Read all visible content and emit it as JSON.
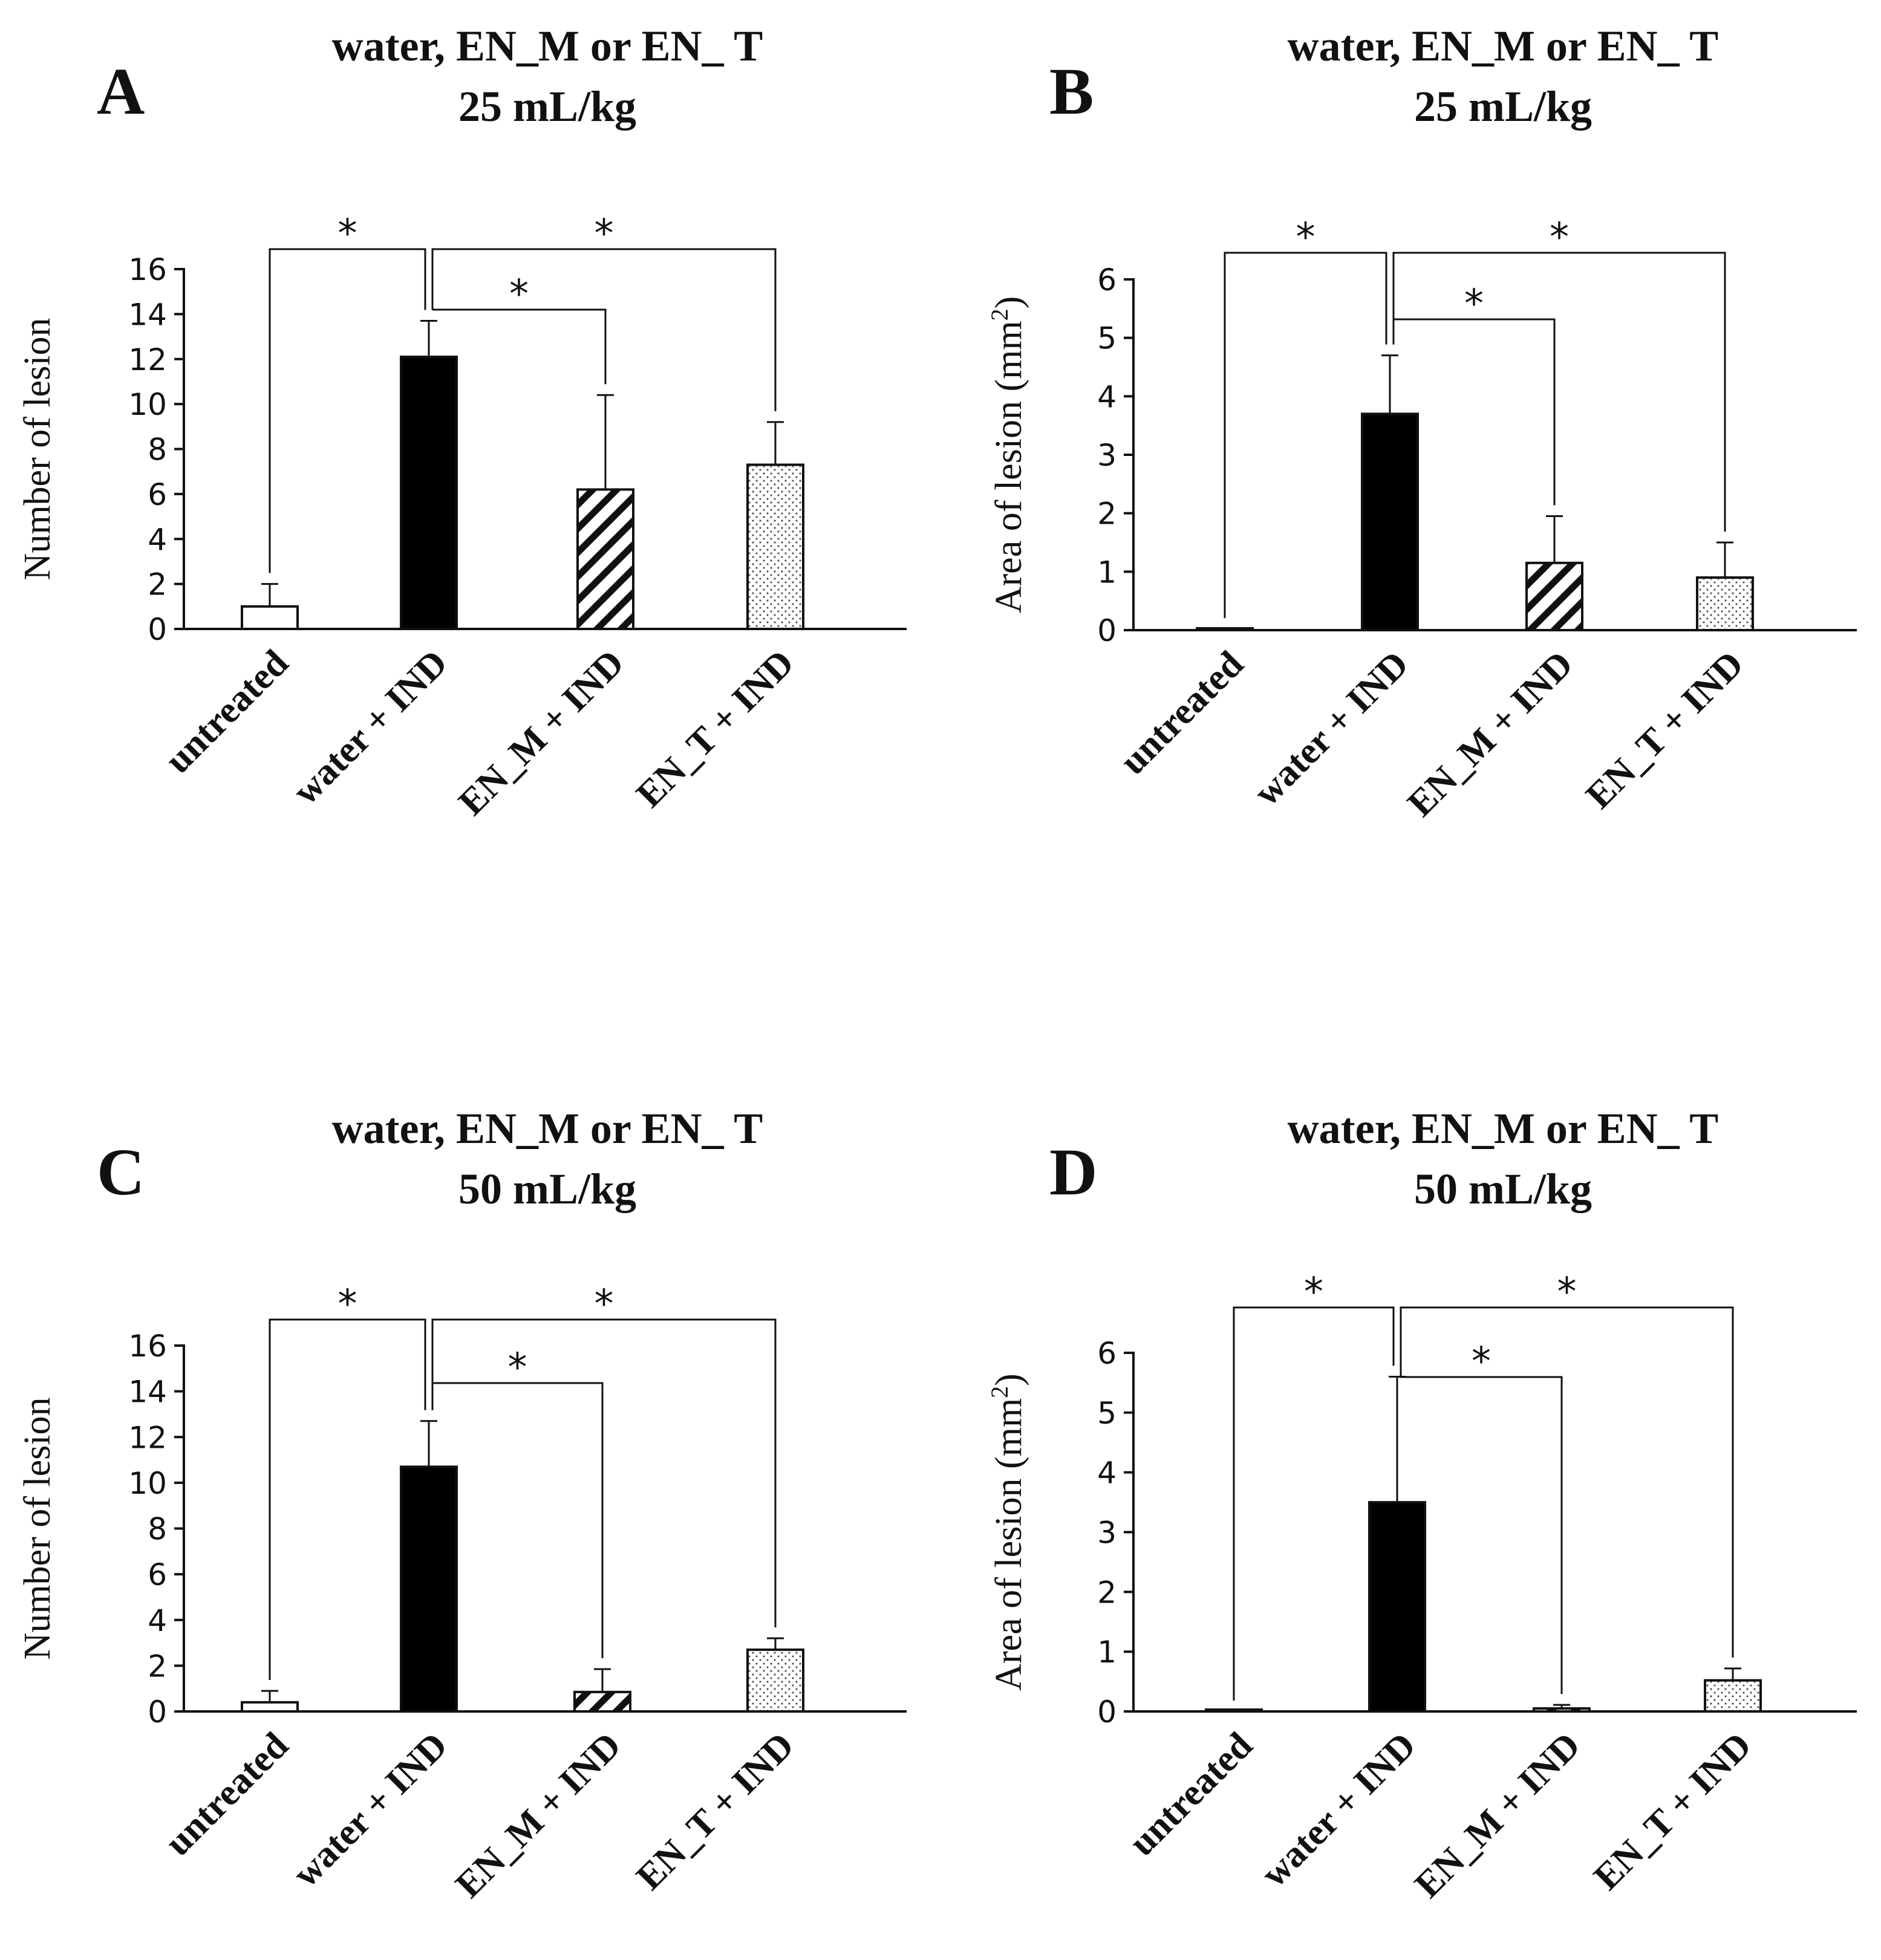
{
  "chart_data": [
    {
      "panel": "A",
      "type": "bar",
      "title": [
        "water, EN_M or EN_ T",
        "25 mL/kg"
      ],
      "ylabel": "Number of lesion",
      "ylim": [
        0,
        16
      ],
      "yticks": [
        0,
        2,
        4,
        6,
        8,
        10,
        12,
        14,
        16
      ],
      "categories": [
        "untreated",
        "water + IND",
        "EN_M + IND",
        "EN_T + IND"
      ],
      "values": [
        1.0,
        12.1,
        6.2,
        7.3
      ],
      "errors": [
        1.0,
        1.6,
        4.2,
        1.9
      ],
      "fills": [
        "white",
        "black",
        "hatch",
        "dots"
      ],
      "significance": [
        {
          "from": 0,
          "to": 1,
          "level": 0.0,
          "label": "*"
        },
        {
          "from": 1,
          "to": 2,
          "level": 1.0,
          "label": "*"
        },
        {
          "from": 1,
          "to": 3,
          "level": 0.0,
          "label": "*"
        }
      ]
    },
    {
      "panel": "B",
      "type": "bar",
      "title": [
        "water, EN_M or EN_ T",
        "25 mL/kg"
      ],
      "ylabel": "Area of lesion (mm",
      "ylabel_sup": "2",
      "ylabel_end": ")",
      "ylim": [
        0,
        6
      ],
      "yticks": [
        0,
        1,
        2,
        3,
        4,
        5,
        6
      ],
      "categories": [
        "untreated",
        "water + IND",
        "EN_M + IND",
        "EN_T + IND"
      ],
      "values": [
        0.02,
        3.7,
        1.15,
        0.9
      ],
      "errors": [
        0.0,
        1.0,
        0.8,
        0.6
      ],
      "fills": [
        "white",
        "black",
        "hatch",
        "dots"
      ],
      "significance": [
        {
          "from": 0,
          "to": 1,
          "level": 0.0,
          "label": "*"
        },
        {
          "from": 1,
          "to": 2,
          "level": 1.0,
          "label": "*"
        },
        {
          "from": 1,
          "to": 3,
          "level": 0.0,
          "label": "*"
        }
      ]
    },
    {
      "panel": "C",
      "type": "bar",
      "title": [
        "water, EN_M or EN_ T",
        "50 mL/kg"
      ],
      "ylabel": "Number of lesion",
      "ylim": [
        0,
        16
      ],
      "yticks": [
        0,
        2,
        4,
        6,
        8,
        10,
        12,
        14,
        16
      ],
      "categories": [
        "untreated",
        "water + IND",
        "EN_M + IND",
        "EN_T + IND"
      ],
      "values": [
        0.4,
        10.7,
        0.85,
        2.7
      ],
      "errors": [
        0.5,
        2.0,
        1.0,
        0.5
      ],
      "fills": [
        "white",
        "black",
        "hatch",
        "dots"
      ],
      "significance": [
        {
          "from": 0,
          "to": 1,
          "level": 0.0,
          "label": "*"
        },
        {
          "from": 1,
          "to": 2,
          "level": 1.0,
          "label": "*"
        },
        {
          "from": 1,
          "to": 3,
          "level": 0.0,
          "label": "*"
        }
      ]
    },
    {
      "panel": "D",
      "type": "bar",
      "title": [
        "water, EN_M or EN_ T",
        "50 mL/kg"
      ],
      "ylabel": "Area of lesion (mm",
      "ylabel_sup": "2",
      "ylabel_end": ")",
      "ylim": [
        0,
        6
      ],
      "yticks": [
        0,
        1,
        2,
        3,
        4,
        5,
        6
      ],
      "categories": [
        "untreated",
        "water + IND",
        "EN_M + IND",
        "EN_T + IND"
      ],
      "values": [
        0.0,
        3.5,
        0.05,
        0.52
      ],
      "errors": [
        0.0,
        2.1,
        0.06,
        0.2
      ],
      "fills": [
        "white",
        "black",
        "hatch",
        "dots"
      ],
      "significance": [
        {
          "from": 0,
          "to": 1,
          "level": 0.0,
          "label": "*"
        },
        {
          "from": 1,
          "to": 2,
          "level": 1.0,
          "label": "*"
        },
        {
          "from": 1,
          "to": 3,
          "level": 0.0,
          "label": "*"
        }
      ]
    }
  ]
}
